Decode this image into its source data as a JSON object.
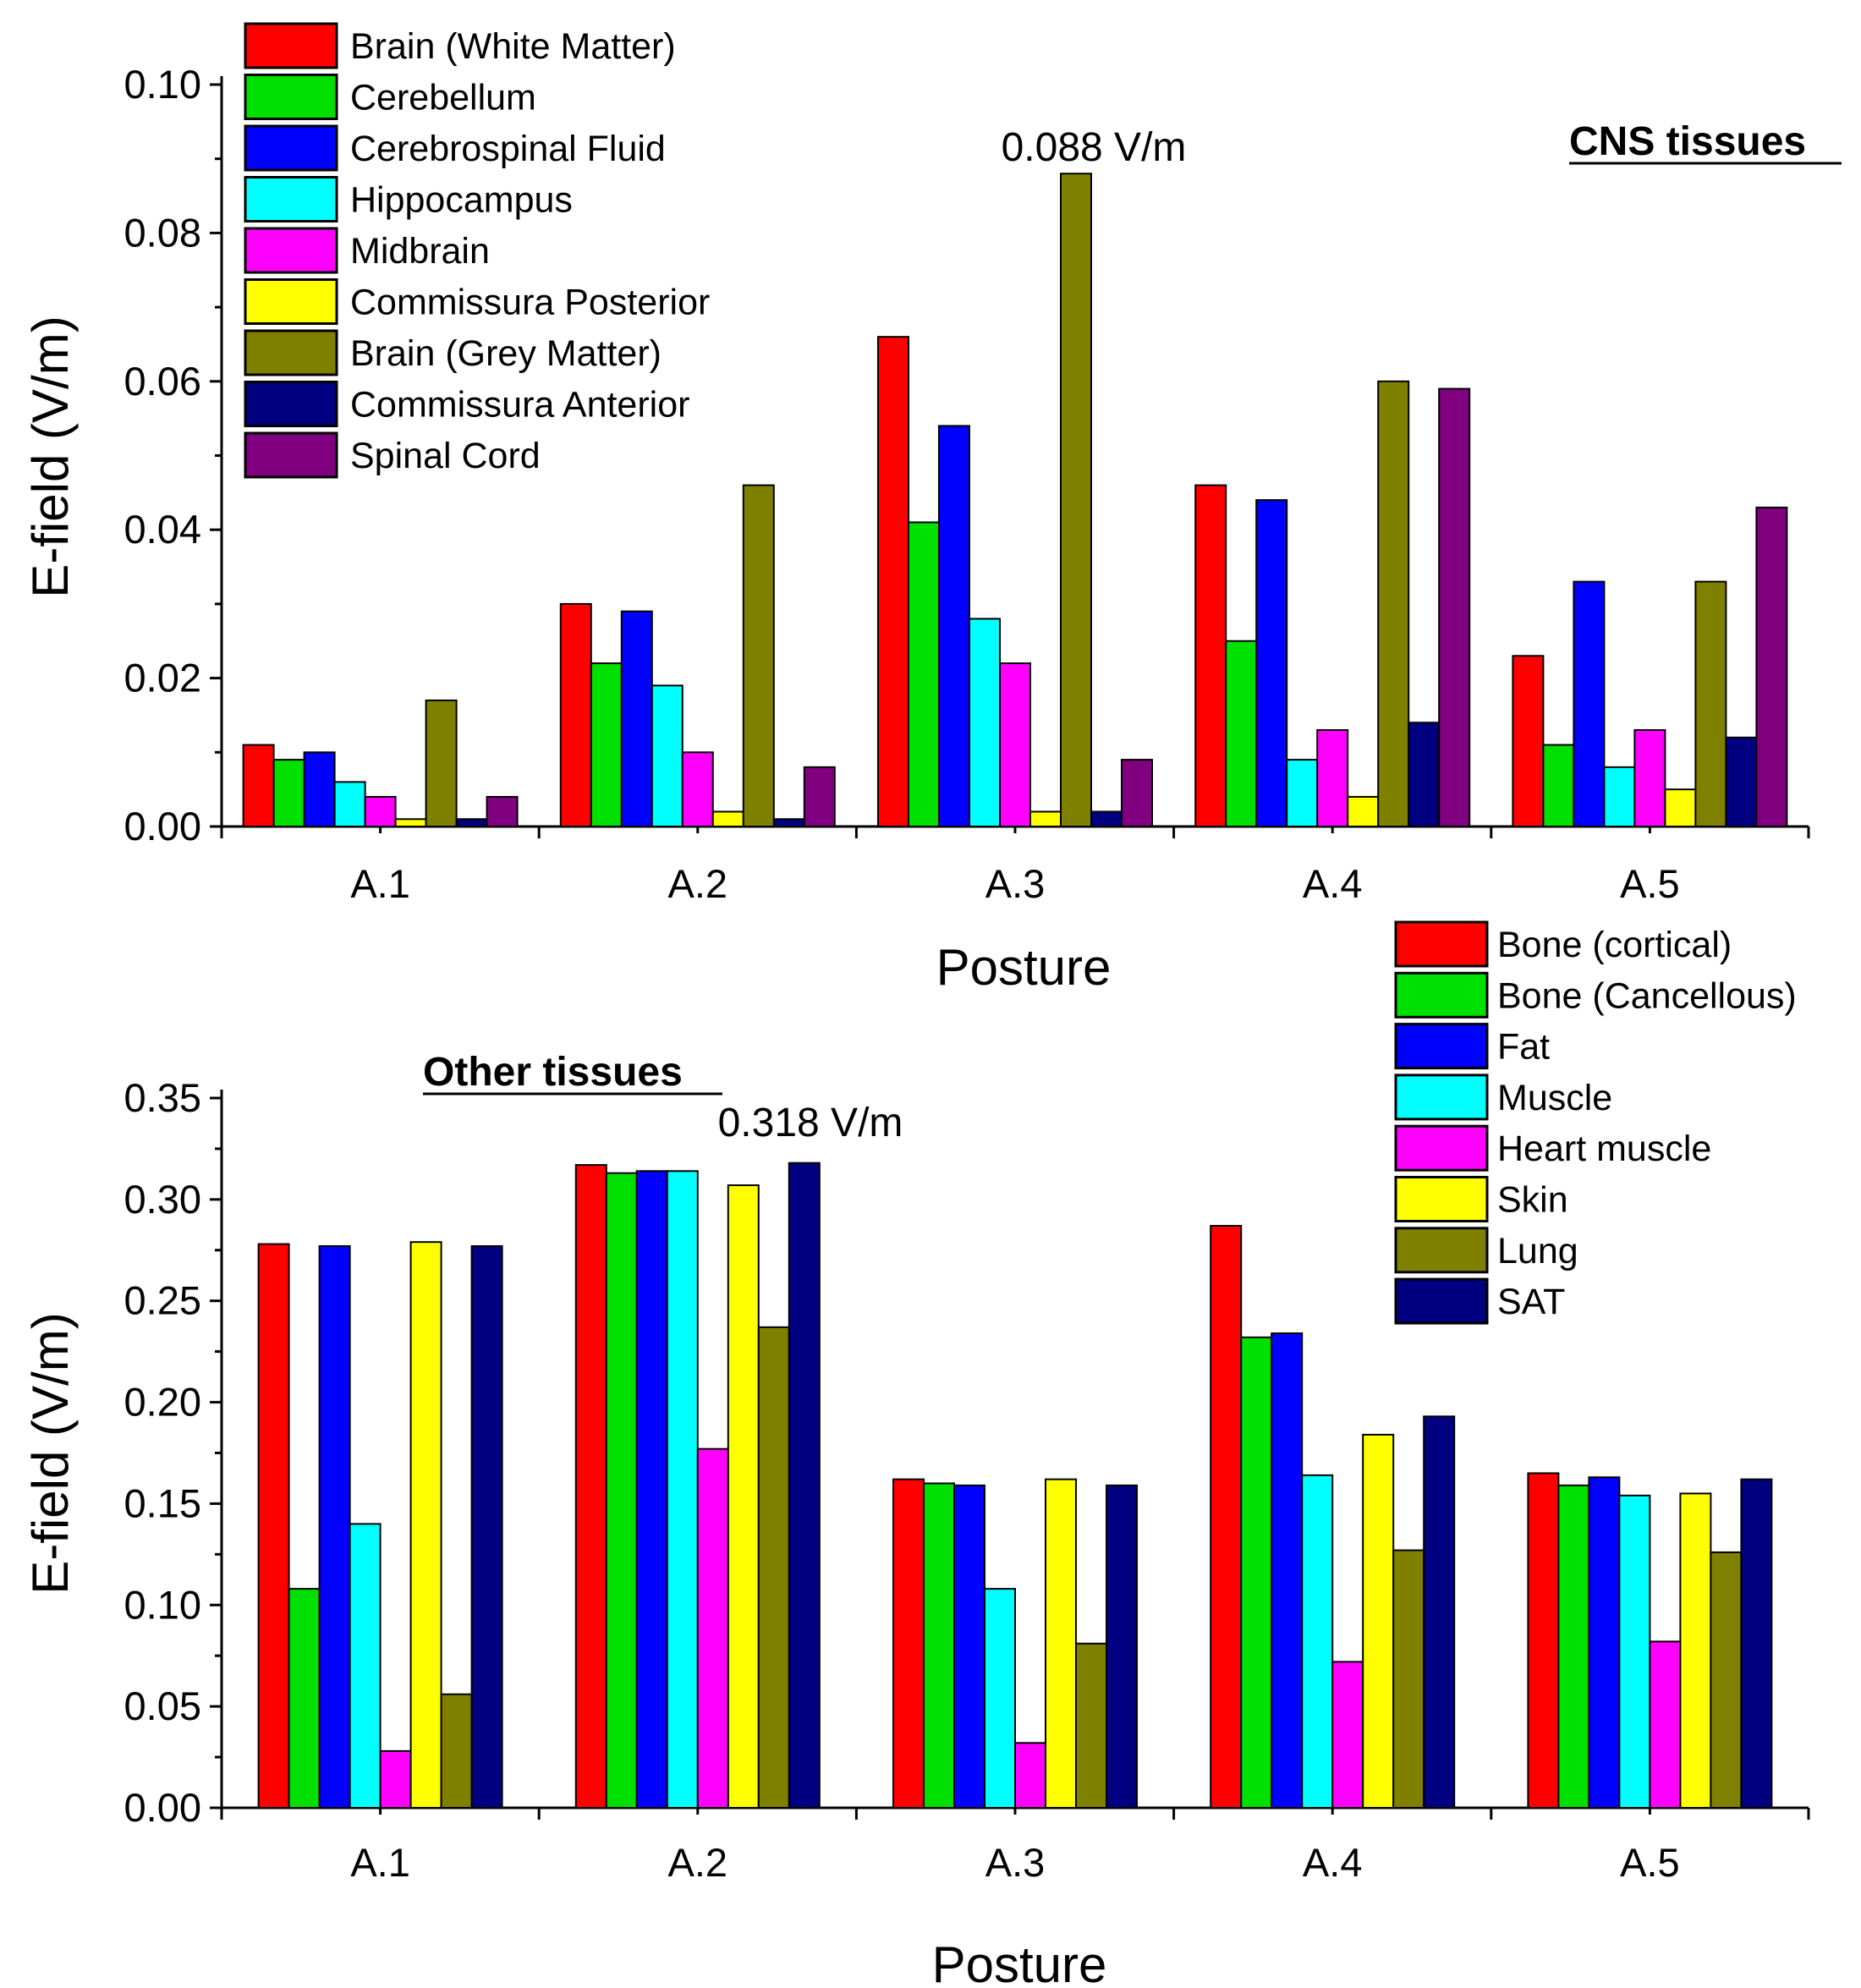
{
  "chart_data": [
    {
      "type": "bar",
      "panel_label": "CNS tissues",
      "annotation": "0.088 V/m",
      "xlabel": "Posture",
      "ylabel": "E-field (V/m)",
      "ylim": [
        0,
        0.1
      ],
      "yticks": [
        "0.00",
        "0.02",
        "0.04",
        "0.06",
        "0.08",
        "0.10"
      ],
      "categories": [
        "A.1",
        "A.2",
        "A.3",
        "A.4",
        "A.5"
      ],
      "legend_position": "top-left",
      "series": [
        {
          "name": "Brain (White Matter)",
          "color": "#ff0000",
          "values": [
            0.011,
            0.03,
            0.066,
            0.046,
            0.023
          ]
        },
        {
          "name": "Cerebellum",
          "color": "#00e000",
          "values": [
            0.009,
            0.022,
            0.041,
            0.025,
            0.011
          ]
        },
        {
          "name": "Cerebrospinal Fluid",
          "color": "#0000ff",
          "values": [
            0.01,
            0.029,
            0.054,
            0.044,
            0.033
          ]
        },
        {
          "name": "Hippocampus",
          "color": "#00ffff",
          "values": [
            0.006,
            0.019,
            0.028,
            0.009,
            0.008
          ]
        },
        {
          "name": "Midbrain",
          "color": "#ff00ff",
          "values": [
            0.004,
            0.01,
            0.022,
            0.013,
            0.013
          ]
        },
        {
          "name": "Commissura Posterior",
          "color": "#ffff00",
          "values": [
            0.001,
            0.002,
            0.002,
            0.004,
            0.005
          ]
        },
        {
          "name": "Brain (Grey Matter)",
          "color": "#808000",
          "values": [
            0.017,
            0.046,
            0.088,
            0.06,
            0.033
          ]
        },
        {
          "name": "Commissura Anterior",
          "color": "#000080",
          "values": [
            0.001,
            0.001,
            0.002,
            0.014,
            0.012
          ]
        },
        {
          "name": "Spinal Cord",
          "color": "#800080",
          "values": [
            0.004,
            0.008,
            0.009,
            0.059,
            0.043
          ]
        }
      ]
    },
    {
      "type": "bar",
      "panel_label": "Other tissues",
      "annotation": "0.318 V/m",
      "xlabel": "Posture",
      "ylabel": "E-field (V/m)",
      "ylim": [
        0,
        0.35
      ],
      "yticks": [
        "0.00",
        "0.05",
        "0.10",
        "0.15",
        "0.20",
        "0.25",
        "0.30",
        "0.35"
      ],
      "categories": [
        "A.1",
        "A.2",
        "A.3",
        "A.4",
        "A.5"
      ],
      "legend_position": "top-right",
      "series": [
        {
          "name": "Bone (cortical)",
          "color": "#ff0000",
          "values": [
            0.278,
            0.317,
            0.162,
            0.287,
            0.165
          ]
        },
        {
          "name": "Bone (Cancellous)",
          "color": "#00e000",
          "values": [
            0.108,
            0.313,
            0.16,
            0.232,
            0.159
          ]
        },
        {
          "name": "Fat",
          "color": "#0000ff",
          "values": [
            0.277,
            0.314,
            0.159,
            0.234,
            0.163
          ]
        },
        {
          "name": "Muscle",
          "color": "#00ffff",
          "values": [
            0.14,
            0.314,
            0.108,
            0.164,
            0.154
          ]
        },
        {
          "name": "Heart muscle",
          "color": "#ff00ff",
          "values": [
            0.028,
            0.177,
            0.032,
            0.072,
            0.082
          ]
        },
        {
          "name": "Skin",
          "color": "#ffff00",
          "values": [
            0.279,
            0.307,
            0.162,
            0.184,
            0.155
          ]
        },
        {
          "name": "Lung",
          "color": "#808000",
          "values": [
            0.056,
            0.237,
            0.081,
            0.127,
            0.126
          ]
        },
        {
          "name": "SAT",
          "color": "#000080",
          "values": [
            0.277,
            0.318,
            0.159,
            0.193,
            0.162
          ]
        }
      ]
    }
  ]
}
